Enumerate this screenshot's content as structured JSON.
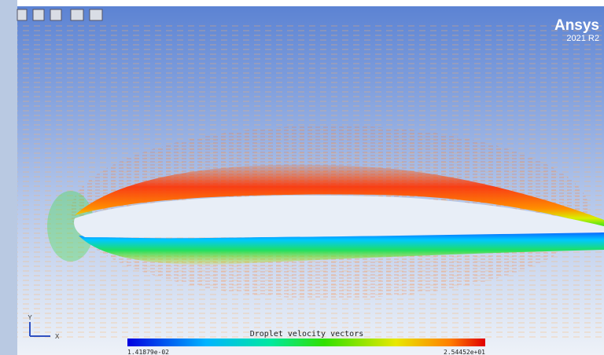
{
  "brand": {
    "name": "Ansys",
    "version": "2021 R2"
  },
  "axes": {
    "y": "Y",
    "x": "X"
  },
  "colorbar": {
    "title": "Droplet velocity vectors",
    "min_label": "1.41879e-02",
    "max_label": "2.54452e+01"
  }
}
